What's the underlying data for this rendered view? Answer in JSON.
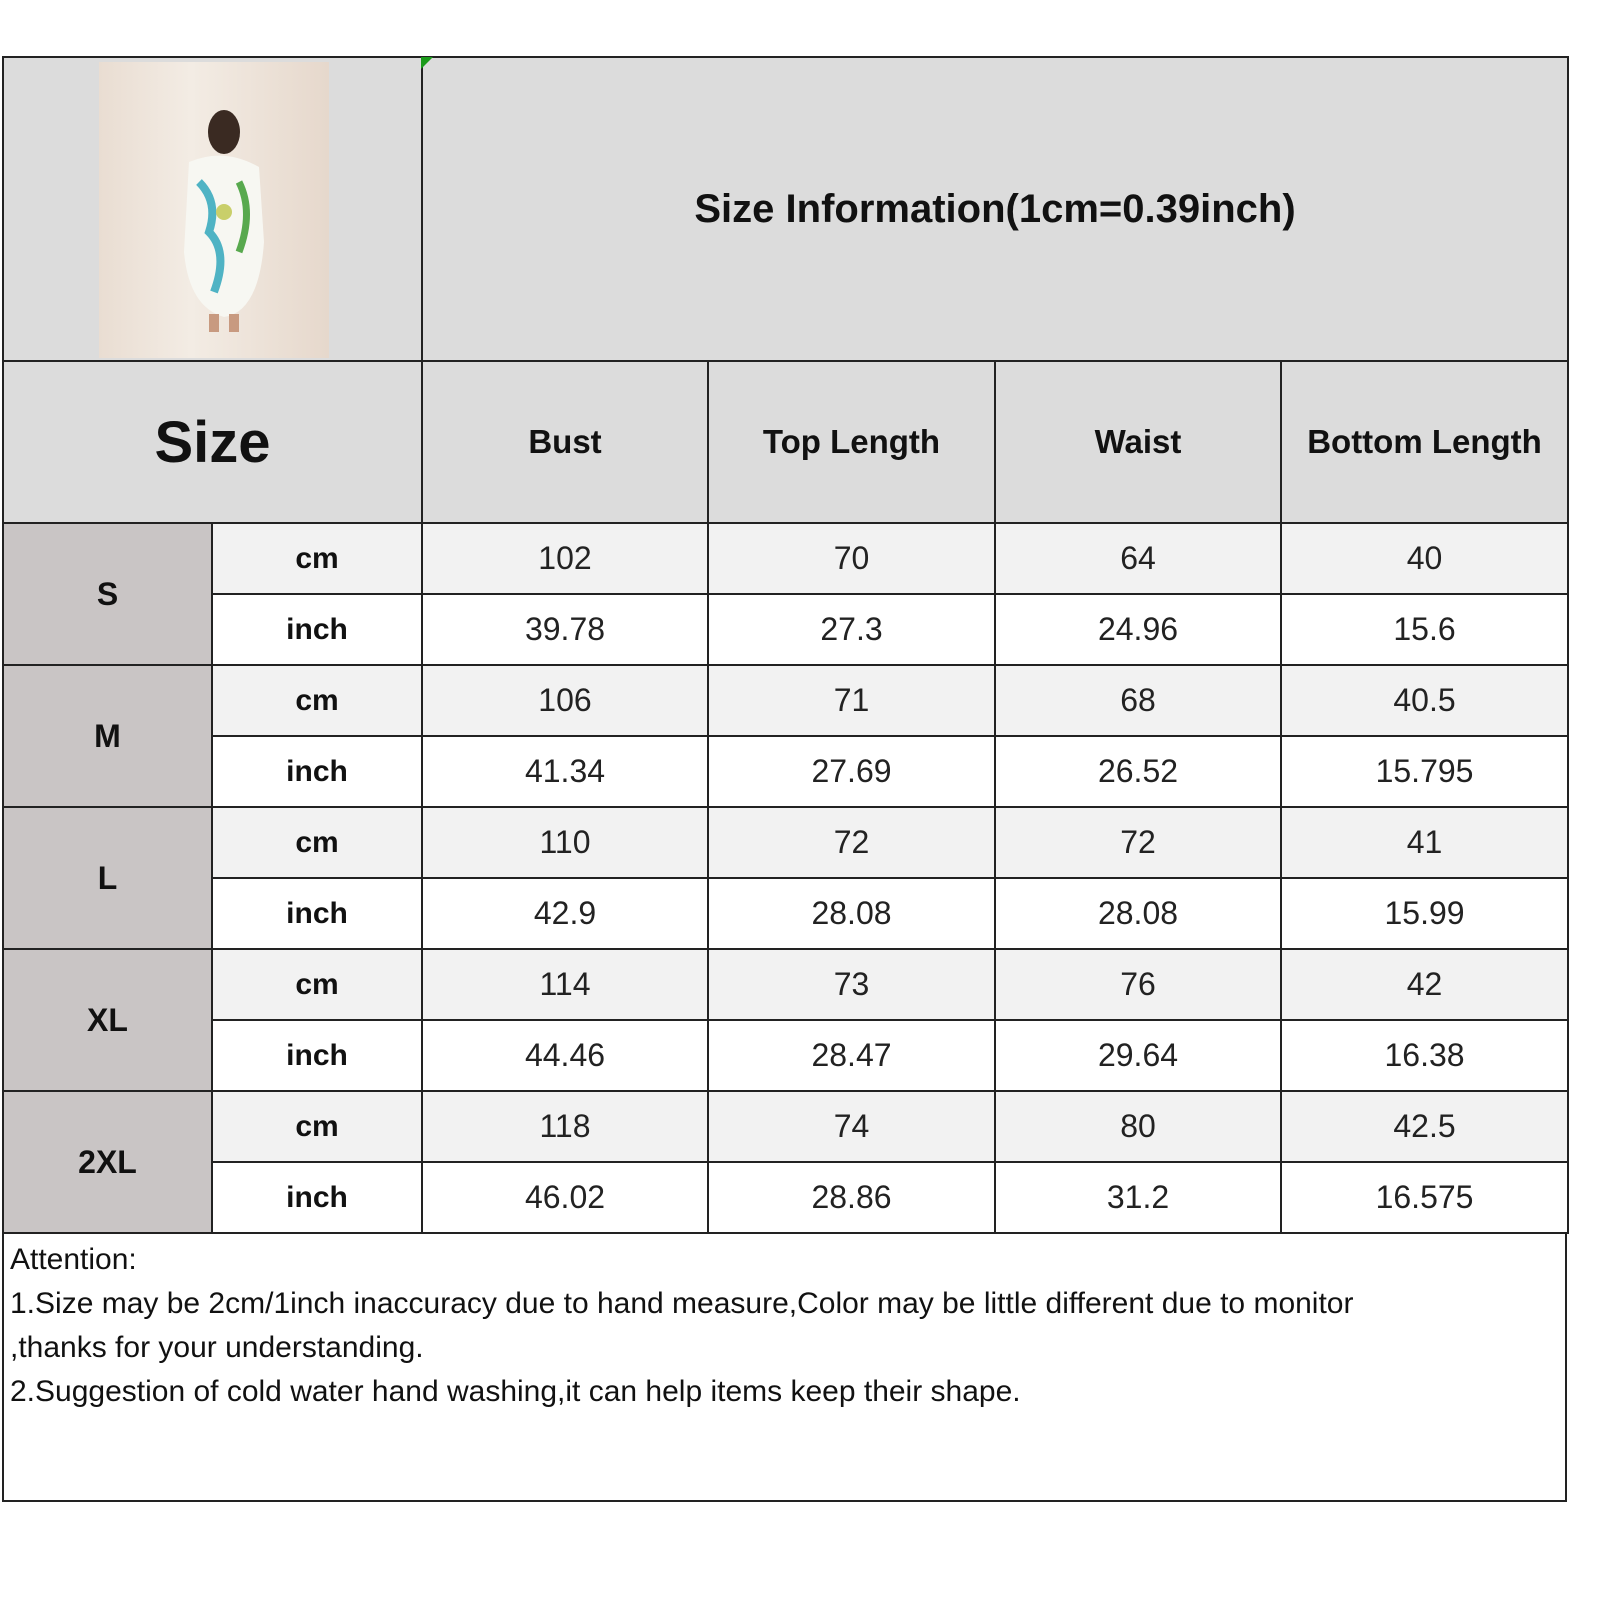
{
  "title": "Size Information(1cm=0.39inch)",
  "size_header": "Size",
  "columns": [
    "Bust",
    "Top Length",
    "Waist",
    "Bottom Length"
  ],
  "units": {
    "cm": "cm",
    "inch": "inch"
  },
  "rows": [
    {
      "size": "S",
      "cm": [
        "102",
        "70",
        "64",
        "40"
      ],
      "inch": [
        "39.78",
        "27.3",
        "24.96",
        "15.6"
      ]
    },
    {
      "size": "M",
      "cm": [
        "106",
        "71",
        "68",
        "40.5"
      ],
      "inch": [
        "41.34",
        "27.69",
        "26.52",
        "15.795"
      ]
    },
    {
      "size": "L",
      "cm": [
        "110",
        "72",
        "72",
        "41"
      ],
      "inch": [
        "42.9",
        "28.08",
        "28.08",
        "15.99"
      ]
    },
    {
      "size": "XL",
      "cm": [
        "114",
        "73",
        "76",
        "42"
      ],
      "inch": [
        "44.46",
        "28.47",
        "29.64",
        "16.38"
      ]
    },
    {
      "size": "2XL",
      "cm": [
        "118",
        "74",
        "80",
        "42.5"
      ],
      "inch": [
        "46.02",
        "28.86",
        "31.2",
        "16.575"
      ]
    }
  ],
  "notes": {
    "heading": "Attention:",
    "line1": "1.Size may be 2cm/1inch inaccuracy due to hand measure,Color may be little different due to monitor",
    "line1b": ",thanks for your understanding.",
    "line2": "2.Suggestion of cold water hand washing,it can help items keep their shape."
  },
  "colors": {
    "header_bg": "#dcdcdc",
    "size_bg": "#c9c5c5",
    "cm_row_bg": "#f2f2f2"
  }
}
